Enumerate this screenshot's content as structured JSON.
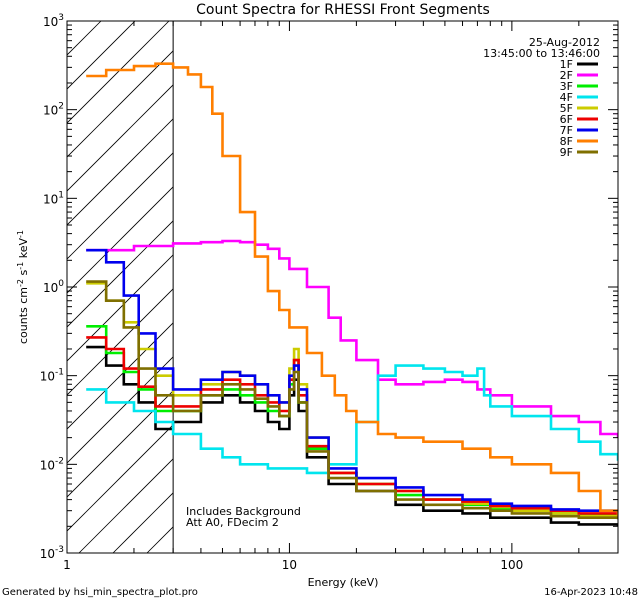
{
  "chart_data": {
    "type": "line",
    "title": "Count Spectra for RHESSI Front Segments",
    "xlabel": "Energy (keV)",
    "ylabel": "counts cm^-2 s^-1 keV^-1",
    "xscale": "log",
    "yscale": "log",
    "xlim": [
      1,
      300
    ],
    "ylim": [
      0.001,
      1000
    ],
    "x_ticks": [
      "1",
      "10",
      "100"
    ],
    "y_ticks": [
      "10^-3",
      "10^-2",
      "10^-1",
      "10^0",
      "10^1",
      "10^2",
      "10^3"
    ],
    "date": "25-Aug-2012",
    "time_range": "13:45:00 to 13:46:00",
    "annotation_lines": [
      "Includes Background",
      "Att A0, FDecim 2"
    ],
    "hatched_region_xmax": 3,
    "legend_position": "top-right",
    "series": [
      {
        "name": "1F",
        "color": "#000000",
        "points": [
          [
            1.22,
            0.21
          ],
          [
            1.5,
            0.13
          ],
          [
            1.8,
            0.08
          ],
          [
            2.1,
            0.05
          ],
          [
            2.5,
            0.025
          ],
          [
            3,
            0.03
          ],
          [
            4,
            0.05
          ],
          [
            5,
            0.06
          ],
          [
            6,
            0.05
          ],
          [
            7,
            0.04
          ],
          [
            8,
            0.03
          ],
          [
            9,
            0.025
          ],
          [
            10,
            0.06
          ],
          [
            10.5,
            0.09
          ],
          [
            11,
            0.04
          ],
          [
            12,
            0.012
          ],
          [
            15,
            0.006
          ],
          [
            20,
            0.005
          ],
          [
            30,
            0.0035
          ],
          [
            40,
            0.003
          ],
          [
            60,
            0.0028
          ],
          [
            80,
            0.0025
          ],
          [
            100,
            0.0025
          ],
          [
            150,
            0.0022
          ],
          [
            200,
            0.0021
          ],
          [
            300,
            0.002
          ]
        ]
      },
      {
        "name": "2F",
        "color": "#ff00ff",
        "points": [
          [
            1.22,
            2.6
          ],
          [
            2,
            2.9
          ],
          [
            3,
            3.1
          ],
          [
            4,
            3.2
          ],
          [
            5,
            3.3
          ],
          [
            6,
            3.2
          ],
          [
            7,
            3.0
          ],
          [
            8,
            2.7
          ],
          [
            9,
            2.1
          ],
          [
            10,
            1.6
          ],
          [
            12,
            1.0
          ],
          [
            15,
            0.45
          ],
          [
            17,
            0.25
          ],
          [
            20,
            0.15
          ],
          [
            25,
            0.09
          ],
          [
            30,
            0.08
          ],
          [
            40,
            0.085
          ],
          [
            50,
            0.09
          ],
          [
            60,
            0.085
          ],
          [
            70,
            0.07
          ],
          [
            80,
            0.06
          ],
          [
            100,
            0.045
          ],
          [
            150,
            0.035
          ],
          [
            200,
            0.03
          ],
          [
            250,
            0.022
          ],
          [
            300,
            0.02
          ]
        ]
      },
      {
        "name": "3F",
        "color": "#00ee00",
        "points": [
          [
            1.22,
            0.36
          ],
          [
            1.5,
            0.18
          ],
          [
            1.8,
            0.11
          ],
          [
            2.1,
            0.07
          ],
          [
            2.5,
            0.04
          ],
          [
            3,
            0.04
          ],
          [
            4,
            0.06
          ],
          [
            5,
            0.07
          ],
          [
            6,
            0.06
          ],
          [
            7,
            0.05
          ],
          [
            8,
            0.04
          ],
          [
            9,
            0.035
          ],
          [
            10,
            0.08
          ],
          [
            10.5,
            0.15
          ],
          [
            11,
            0.05
          ],
          [
            12,
            0.015
          ],
          [
            15,
            0.008
          ],
          [
            20,
            0.006
          ],
          [
            30,
            0.0045
          ],
          [
            40,
            0.004
          ],
          [
            60,
            0.0035
          ],
          [
            80,
            0.0032
          ],
          [
            100,
            0.003
          ],
          [
            150,
            0.0028
          ],
          [
            200,
            0.0027
          ],
          [
            300,
            0.0026
          ]
        ]
      },
      {
        "name": "4F",
        "color": "#00e5ee",
        "points": [
          [
            1.22,
            0.07
          ],
          [
            1.5,
            0.05
          ],
          [
            2,
            0.04
          ],
          [
            2.5,
            0.03
          ],
          [
            3,
            0.022
          ],
          [
            4,
            0.015
          ],
          [
            5,
            0.012
          ],
          [
            6,
            0.01
          ],
          [
            8,
            0.009
          ],
          [
            10,
            0.009
          ],
          [
            12,
            0.008
          ],
          [
            15,
            0.01
          ],
          [
            20,
            0.03
          ],
          [
            25,
            0.1
          ],
          [
            30,
            0.13
          ],
          [
            40,
            0.12
          ],
          [
            50,
            0.11
          ],
          [
            60,
            0.1
          ],
          [
            70,
            0.12
          ],
          [
            72,
            0.12
          ],
          [
            75,
            0.06
          ],
          [
            80,
            0.045
          ],
          [
            100,
            0.035
          ],
          [
            150,
            0.025
          ],
          [
            200,
            0.018
          ],
          [
            250,
            0.013
          ],
          [
            300,
            0.011
          ]
        ]
      },
      {
        "name": "5F",
        "color": "#cccc00",
        "points": [
          [
            1.22,
            1.1
          ],
          [
            1.5,
            0.7
          ],
          [
            1.8,
            0.4
          ],
          [
            2.1,
            0.2
          ],
          [
            2.5,
            0.1
          ],
          [
            3,
            0.06
          ],
          [
            4,
            0.08
          ],
          [
            5,
            0.11
          ],
          [
            6,
            0.1
          ],
          [
            7,
            0.08
          ],
          [
            8,
            0.06
          ],
          [
            9,
            0.05
          ],
          [
            10,
            0.12
          ],
          [
            10.5,
            0.2
          ],
          [
            11,
            0.08
          ],
          [
            12,
            0.02
          ],
          [
            15,
            0.008
          ],
          [
            20,
            0.006
          ],
          [
            30,
            0.005
          ],
          [
            40,
            0.004
          ],
          [
            60,
            0.0036
          ],
          [
            80,
            0.0033
          ],
          [
            100,
            0.003
          ],
          [
            150,
            0.0028
          ],
          [
            200,
            0.0026
          ],
          [
            300,
            0.0025
          ]
        ]
      },
      {
        "name": "6F",
        "color": "#ee0000",
        "points": [
          [
            1.22,
            0.27
          ],
          [
            1.5,
            0.2
          ],
          [
            1.8,
            0.12
          ],
          [
            2.1,
            0.075
          ],
          [
            2.5,
            0.045
          ],
          [
            3,
            0.045
          ],
          [
            4,
            0.07
          ],
          [
            5,
            0.09
          ],
          [
            6,
            0.08
          ],
          [
            7,
            0.06
          ],
          [
            8,
            0.05
          ],
          [
            9,
            0.04
          ],
          [
            10,
            0.09
          ],
          [
            10.5,
            0.15
          ],
          [
            11,
            0.06
          ],
          [
            12,
            0.016
          ],
          [
            15,
            0.008
          ],
          [
            20,
            0.006
          ],
          [
            30,
            0.005
          ],
          [
            40,
            0.004
          ],
          [
            60,
            0.0038
          ],
          [
            80,
            0.0034
          ],
          [
            100,
            0.0032
          ],
          [
            150,
            0.003
          ],
          [
            200,
            0.0028
          ],
          [
            300,
            0.0027
          ]
        ]
      },
      {
        "name": "7F",
        "color": "#0000ee",
        "points": [
          [
            1.22,
            2.6
          ],
          [
            1.5,
            1.9
          ],
          [
            1.8,
            0.8
          ],
          [
            2.1,
            0.3
          ],
          [
            2.5,
            0.12
          ],
          [
            3,
            0.07
          ],
          [
            4,
            0.09
          ],
          [
            5,
            0.11
          ],
          [
            6,
            0.1
          ],
          [
            7,
            0.08
          ],
          [
            8,
            0.06
          ],
          [
            9,
            0.05
          ],
          [
            10,
            0.1
          ],
          [
            10.5,
            0.13
          ],
          [
            11,
            0.07
          ],
          [
            12,
            0.02
          ],
          [
            15,
            0.009
          ],
          [
            20,
            0.007
          ],
          [
            30,
            0.0055
          ],
          [
            40,
            0.0045
          ],
          [
            60,
            0.004
          ],
          [
            80,
            0.0036
          ],
          [
            100,
            0.0034
          ],
          [
            150,
            0.0031
          ],
          [
            200,
            0.003
          ],
          [
            300,
            0.0029
          ]
        ]
      },
      {
        "name": "8F",
        "color": "#ff7f00",
        "points": [
          [
            1.22,
            240
          ],
          [
            1.5,
            280
          ],
          [
            2,
            310
          ],
          [
            2.5,
            330
          ],
          [
            3,
            300
          ],
          [
            3.5,
            250
          ],
          [
            4,
            180
          ],
          [
            4.5,
            90
          ],
          [
            5,
            30
          ],
          [
            6,
            7
          ],
          [
            7,
            2.2
          ],
          [
            8,
            0.9
          ],
          [
            9,
            0.55
          ],
          [
            10,
            0.35
          ],
          [
            12,
            0.18
          ],
          [
            14,
            0.1
          ],
          [
            16,
            0.06
          ],
          [
            18,
            0.04
          ],
          [
            20,
            0.03
          ],
          [
            25,
            0.022
          ],
          [
            30,
            0.02
          ],
          [
            40,
            0.018
          ],
          [
            60,
            0.015
          ],
          [
            80,
            0.012
          ],
          [
            100,
            0.01
          ],
          [
            150,
            0.008
          ],
          [
            200,
            0.005
          ],
          [
            250,
            0.003
          ],
          [
            300,
            0.0025
          ]
        ]
      },
      {
        "name": "9F",
        "color": "#7f6f00",
        "points": [
          [
            1.22,
            1.15
          ],
          [
            1.5,
            0.7
          ],
          [
            1.8,
            0.35
          ],
          [
            2.1,
            0.12
          ],
          [
            2.5,
            0.06
          ],
          [
            3,
            0.04
          ],
          [
            4,
            0.06
          ],
          [
            5,
            0.08
          ],
          [
            6,
            0.07
          ],
          [
            7,
            0.055
          ],
          [
            8,
            0.045
          ],
          [
            9,
            0.035
          ],
          [
            10,
            0.07
          ],
          [
            10.5,
            0.11
          ],
          [
            11,
            0.05
          ],
          [
            12,
            0.014
          ],
          [
            15,
            0.007
          ],
          [
            20,
            0.005
          ],
          [
            30,
            0.004
          ],
          [
            40,
            0.0035
          ],
          [
            60,
            0.0032
          ],
          [
            80,
            0.003
          ],
          [
            100,
            0.0028
          ],
          [
            150,
            0.0026
          ],
          [
            200,
            0.0025
          ],
          [
            300,
            0.0024
          ]
        ]
      }
    ]
  },
  "footer": {
    "generated_by": "Generated by hsi_min_spectra_plot.pro",
    "timestamp": "16-Apr-2023 10:48"
  }
}
